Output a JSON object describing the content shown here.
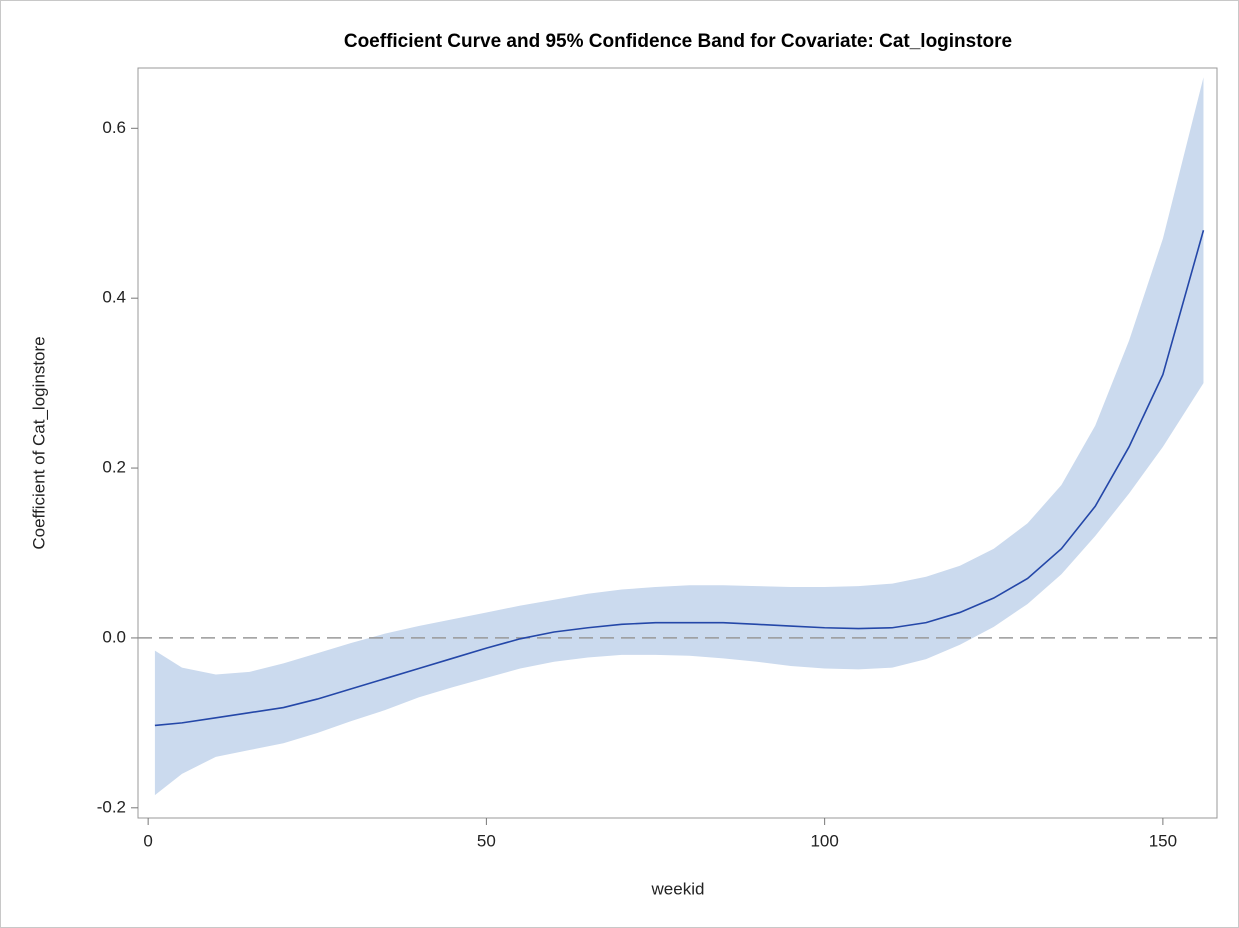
{
  "chart_data": {
    "type": "band-line",
    "title": "Coefficient Curve and 95% Confidence Band for Covariate: Cat_loginstore",
    "x_label": "weekid",
    "y_label": "Coefficient of Cat_loginstore",
    "x": [
      1,
      5,
      10,
      15,
      20,
      25,
      30,
      35,
      40,
      45,
      50,
      55,
      60,
      65,
      70,
      75,
      80,
      85,
      90,
      95,
      100,
      105,
      110,
      115,
      120,
      125,
      130,
      135,
      140,
      145,
      150,
      156
    ],
    "series": [
      {
        "color": "#2447a8",
        "values": [
          -0.103,
          -0.1,
          -0.094,
          -0.088,
          -0.082,
          -0.072,
          -0.06,
          -0.048,
          -0.036,
          -0.024,
          -0.012,
          -0.001,
          0.007,
          0.012,
          0.016,
          0.018,
          0.018,
          0.018,
          0.016,
          0.014,
          0.012,
          0.011,
          0.012,
          0.018,
          0.03,
          0.047,
          0.07,
          0.105,
          0.155,
          0.225,
          0.31,
          0.48
        ]
      }
    ],
    "band": {
      "color": "#cbdaee",
      "upper": [
        -0.015,
        -0.035,
        -0.043,
        -0.04,
        -0.03,
        -0.018,
        -0.006,
        0.005,
        0.014,
        0.022,
        0.03,
        0.038,
        0.045,
        0.052,
        0.057,
        0.06,
        0.062,
        0.062,
        0.061,
        0.06,
        0.06,
        0.061,
        0.064,
        0.072,
        0.085,
        0.105,
        0.135,
        0.18,
        0.25,
        0.35,
        0.47,
        0.66
      ],
      "lower": [
        -0.185,
        -0.16,
        -0.14,
        -0.132,
        -0.124,
        -0.112,
        -0.098,
        -0.085,
        -0.07,
        -0.058,
        -0.047,
        -0.036,
        -0.028,
        -0.023,
        -0.02,
        -0.02,
        -0.021,
        -0.024,
        -0.028,
        -0.033,
        -0.036,
        -0.037,
        -0.035,
        -0.025,
        -0.008,
        0.013,
        0.04,
        0.075,
        0.12,
        0.17,
        0.225,
        0.3
      ]
    },
    "reference_line": 0,
    "xlim": [
      -1.5,
      158
    ],
    "ylim": [
      -0.212,
      0.671
    ],
    "xticks": [
      0,
      50,
      100,
      150
    ],
    "yticks": [
      -0.2,
      {
        "value": 0,
        "label": "0.0"
      },
      0.2,
      0.4,
      0.6
    ]
  }
}
